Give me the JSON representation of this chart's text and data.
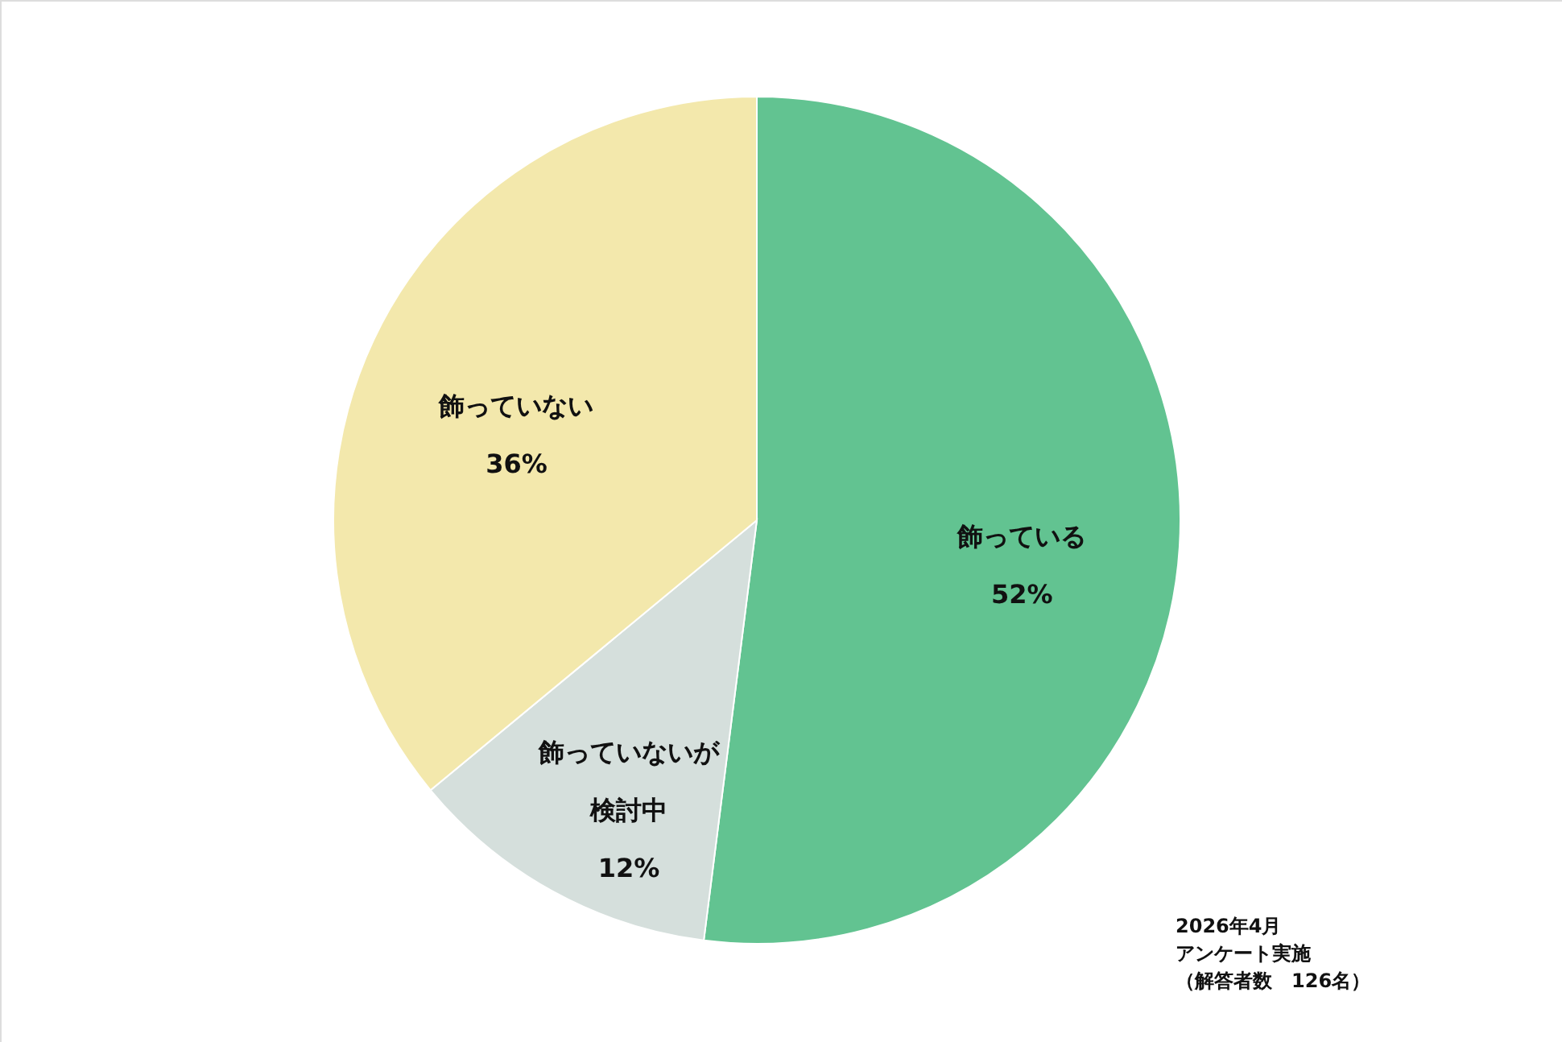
{
  "chart_data": {
    "type": "pie",
    "categories": [
      "飾っている",
      "飾っていないが検討中",
      "飾っていない"
    ],
    "values": [
      52,
      12,
      36
    ],
    "value_labels": [
      "52%",
      "12%",
      "36%"
    ],
    "colors": [
      "#62c391",
      "#d5dfdc",
      "#f3e8ac"
    ],
    "annotations": [
      "2026年4月",
      "アンケート実施",
      "（解答者数　126名）"
    ]
  }
}
